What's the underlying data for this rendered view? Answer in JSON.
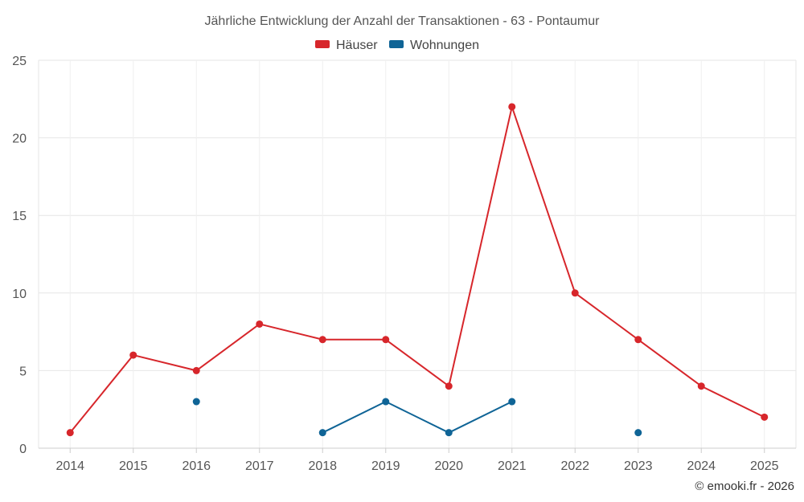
{
  "chart_data": {
    "type": "line",
    "title": "Jährliche Entwicklung der Anzahl der Transaktionen - 63 - Pontaumur",
    "categories": [
      "2014",
      "2015",
      "2016",
      "2017",
      "2018",
      "2019",
      "2020",
      "2021",
      "2022",
      "2023",
      "2024",
      "2025"
    ],
    "series": [
      {
        "name": "Häuser",
        "color": "#d7262b",
        "values": [
          1,
          6,
          5,
          8,
          7,
          7,
          4,
          22,
          10,
          7,
          4,
          2
        ]
      },
      {
        "name": "Wohnungen",
        "color": "#0f6496",
        "values": [
          null,
          null,
          3,
          null,
          1,
          3,
          1,
          3,
          null,
          1,
          null,
          null
        ]
      }
    ],
    "ylim": [
      0,
      25
    ],
    "yticks": [
      0,
      5,
      10,
      15,
      20,
      25
    ],
    "xlabel": "",
    "ylabel": "",
    "grid": true,
    "legend": "top-center",
    "credit": "© emooki.fr - 2026"
  }
}
